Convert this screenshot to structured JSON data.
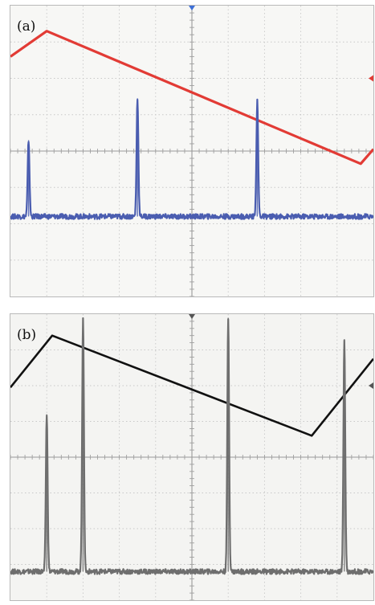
{
  "panels": [
    {
      "label": "(a)",
      "chart_data": {
        "type": "line",
        "xlim": [
          0,
          10
        ],
        "ylim": [
          0,
          8
        ],
        "grid": true,
        "series": [
          {
            "color": "#e23b35",
            "width": 3.2,
            "x": [
              0,
              1.0,
              9.65,
              10.0
            ],
            "y": [
              6.6,
              7.3,
              3.65,
              4.05
            ]
          },
          {
            "color": "#4a5db0",
            "width": 2.2,
            "baseline": 2.2,
            "peaks": [
              {
                "x": 0.5,
                "height": 4.3
              },
              {
                "x": 3.5,
                "height": 5.45
              },
              {
                "x": 6.8,
                "height": 5.35
              }
            ]
          }
        ]
      }
    },
    {
      "label": "(b)",
      "chart_data": {
        "type": "line",
        "xlim": [
          0,
          10
        ],
        "ylim": [
          0,
          8
        ],
        "grid": true,
        "series": [
          {
            "color": "#111111",
            "width": 2.6,
            "x": [
              0,
              1.15,
              8.3,
              10.0
            ],
            "y": [
              5.95,
              7.4,
              4.6,
              6.75
            ]
          },
          {
            "color": "#6e6e6e",
            "width": 2.2,
            "baseline": 0.8,
            "peaks": [
              {
                "x": 1.0,
                "height": 5.2
              },
              {
                "x": 2.0,
                "height": 7.9
              },
              {
                "x": 6.0,
                "height": 7.9
              },
              {
                "x": 9.2,
                "height": 7.3
              }
            ]
          }
        ]
      }
    }
  ]
}
